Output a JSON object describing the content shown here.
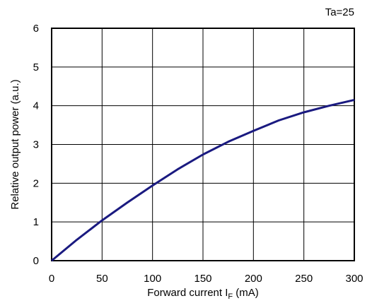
{
  "chart_data": {
    "type": "line",
    "annotation": "Ta=25",
    "xlabel": {
      "main": "Forward current I",
      "sub": "F",
      "unit": " (mA)"
    },
    "ylabel": "Relative output power (a.u.)",
    "xlim": [
      0,
      300
    ],
    "ylim": [
      0,
      6
    ],
    "xticks": [
      "0",
      "50",
      "100",
      "150",
      "200",
      "250",
      "300"
    ],
    "yticks": [
      "0",
      "1",
      "2",
      "3",
      "4",
      "5",
      "6"
    ],
    "grid": true,
    "series": [
      {
        "color": "#1a1a80",
        "x": [
          0,
          25,
          50,
          75,
          100,
          125,
          150,
          175,
          200,
          225,
          250,
          275,
          300
        ],
        "y": [
          0,
          0.54,
          1.04,
          1.5,
          1.94,
          2.36,
          2.74,
          3.07,
          3.35,
          3.62,
          3.83,
          4.0,
          4.15
        ]
      }
    ]
  }
}
